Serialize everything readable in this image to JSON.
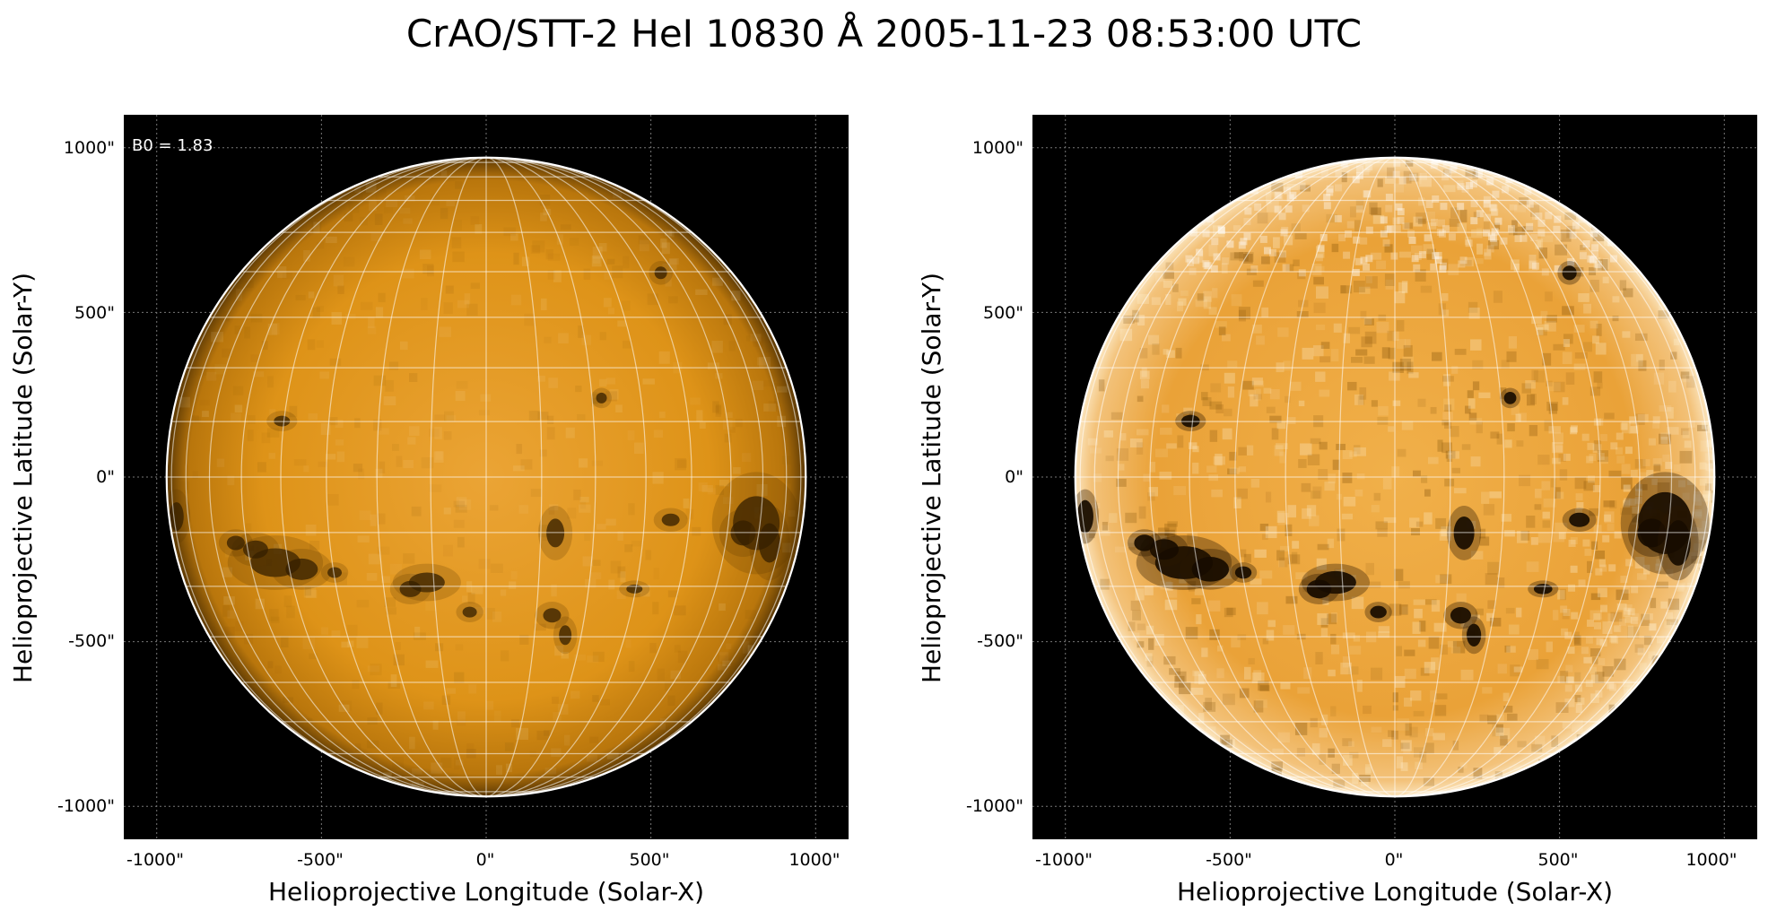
{
  "title": "CrAO/STT-2 HeI 10830 Å 2005-11-23 08:53:00 UTC",
  "colors": {
    "background": "#000000",
    "disk_base": "#e0940f",
    "disk_bright": "#f8d9a6",
    "grid": "#ffffff"
  },
  "panels": [
    {
      "name": "left",
      "annotation": "B0 = 1.83",
      "xlabel": "Helioprojective Longitude (Solar-X)",
      "ylabel": "Helioprojective Latitude (Solar-Y)",
      "xticks": [
        "-1000\"",
        "-500\"",
        "0\"",
        "500\"",
        "1000\""
      ],
      "yticks": [
        "1000\"",
        "500\"",
        "0\"",
        "-500\"",
        "-1000\""
      ],
      "contrast": "normal"
    },
    {
      "name": "right",
      "annotation": "",
      "xlabel": "Helioprojective Longitude (Solar-X)",
      "ylabel": "Helioprojective Latitude (Solar-Y)",
      "xticks": [
        "-1000\"",
        "-500\"",
        "0\"",
        "500\"",
        "1000\""
      ],
      "yticks": [
        "1000\"",
        "500\"",
        "0\"",
        "-500\"",
        "-1000\""
      ],
      "contrast": "enhanced"
    }
  ],
  "solar_radius_arcsec": 970,
  "axis_range_arcsec": [
    -1100,
    1100
  ]
}
